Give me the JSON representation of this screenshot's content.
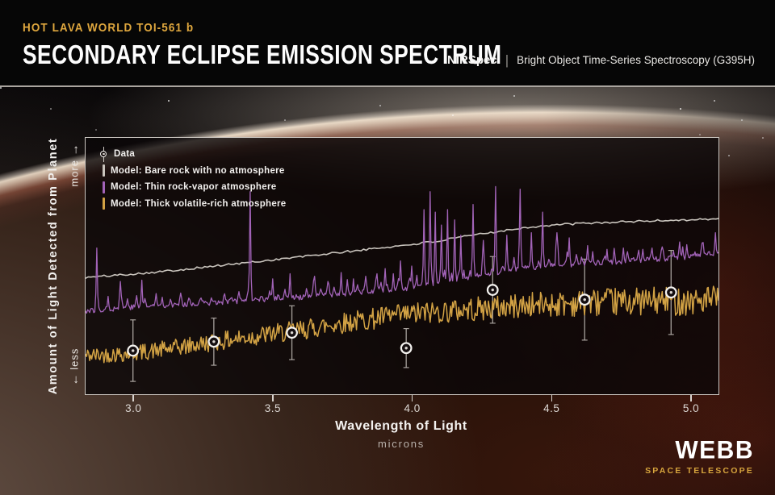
{
  "header": {
    "eyebrow": "HOT LAVA WORLD TOI-561 b",
    "title": "SECONDARY ECLIPSE EMISSION SPECTRUM",
    "instrument": "NIRSpec",
    "separator": "|",
    "mode": "Bright Object Time-Series Spectroscopy (G395H)"
  },
  "colors": {
    "eyebrow_gold": "#dfa73e",
    "rock_gray": "#c9c4bd",
    "vapor_purple": "#a263b8",
    "volatile_gold": "#d2a244",
    "marker_ring": "#f4f2ef",
    "error_bar": "#b7b1ac",
    "frame": "#ccc7c1",
    "webb_gold": "#d7a53d"
  },
  "legend": {
    "items": [
      {
        "label": "Data",
        "type": "marker",
        "icon": "data-point-icon"
      },
      {
        "label": "Model: Bare rock with no atmosphere",
        "type": "swatch",
        "color": "#c9c4bd"
      },
      {
        "label": "Model: Thin rock-vapor atmosphere",
        "type": "swatch",
        "color": "#a263b8"
      },
      {
        "label": "Model: Thick volatile-rich atmosphere",
        "type": "swatch",
        "color": "#d2a244"
      }
    ]
  },
  "axes": {
    "x_title": "Wavelength of Light",
    "x_subtitle": "microns",
    "x_tick_labels": [
      "3.0",
      "3.5",
      "4.0",
      "4.5",
      "5.0"
    ],
    "x_tick_values": [
      3.0,
      3.5,
      4.0,
      4.5,
      5.0
    ],
    "y_title": "Amount of Light Detected from Planet",
    "y_more_label": "more",
    "y_less_label": "less",
    "up_arrow": "→",
    "down_arrow": "←"
  },
  "footer": {
    "logo": "WEBB",
    "tagline": "SPACE TELESCOPE"
  },
  "chart_data": {
    "type": "line",
    "title": "Secondary eclipse emission spectrum of TOI-561 b",
    "xlabel": "Wavelength of Light (microns)",
    "ylabel": "Amount of Light Detected from Planet (relative, less to more)",
    "x_range": [
      2.83,
      5.1
    ],
    "y_range": [
      0,
      1
    ],
    "grid": false,
    "legend_position": "top-left",
    "data_points": {
      "name": "Data",
      "x": [
        3.0,
        3.29,
        3.57,
        3.98,
        4.29,
        4.62,
        4.93
      ],
      "y": [
        0.17,
        0.205,
        0.24,
        0.18,
        0.407,
        0.369,
        0.397
      ],
      "yerr": [
        0.12,
        0.092,
        0.105,
        0.076,
        0.13,
        0.158,
        0.164
      ]
    },
    "series": [
      {
        "name": "Model: Bare rock with no atmosphere",
        "color": "#c9c4bd",
        "width": 1.6,
        "samples": 240,
        "seed": 101,
        "jitter": 0.004,
        "anchors": [
          [
            2.83,
            0.455
          ],
          [
            3.1,
            0.478
          ],
          [
            3.4,
            0.512
          ],
          [
            3.7,
            0.548
          ],
          [
            3.95,
            0.578
          ],
          [
            4.1,
            0.598
          ],
          [
            4.2,
            0.617
          ],
          [
            4.3,
            0.634
          ],
          [
            4.42,
            0.652
          ],
          [
            4.55,
            0.663
          ],
          [
            4.7,
            0.67
          ],
          [
            4.85,
            0.676
          ],
          [
            5.1,
            0.684
          ]
        ]
      },
      {
        "name": "Model: Thin rock-vapor atmosphere",
        "color": "#a263b8",
        "width": 1.3,
        "samples": 620,
        "seed": 77,
        "jitter": 0.01,
        "anchors": [
          [
            2.83,
            0.325
          ],
          [
            3.0,
            0.34
          ],
          [
            3.2,
            0.352
          ],
          [
            3.4,
            0.365
          ],
          [
            3.6,
            0.378
          ],
          [
            3.8,
            0.395
          ],
          [
            3.95,
            0.408
          ],
          [
            4.1,
            0.432
          ],
          [
            4.25,
            0.465
          ],
          [
            4.4,
            0.492
          ],
          [
            4.55,
            0.505
          ],
          [
            4.7,
            0.515
          ],
          [
            4.9,
            0.528
          ],
          [
            5.1,
            0.545
          ]
        ],
        "bumps": {
          "spacing_min": 5,
          "spacing_max": 14,
          "height_min": 0.015,
          "height_max": 0.055
        },
        "spikes": [
          [
            2.87,
            0.57
          ],
          [
            2.955,
            0.44
          ],
          [
            3.03,
            0.445
          ],
          [
            3.42,
            0.79
          ],
          [
            3.5,
            0.45
          ],
          [
            3.565,
            0.47
          ],
          [
            3.65,
            0.46
          ],
          [
            3.7,
            0.44
          ],
          [
            3.745,
            0.475
          ],
          [
            3.79,
            0.45
          ],
          [
            3.835,
            0.46
          ],
          [
            3.875,
            0.47
          ],
          [
            3.905,
            0.49
          ],
          [
            3.935,
            0.47
          ],
          [
            3.96,
            0.52
          ],
          [
            4.0,
            0.5
          ],
          [
            4.045,
            0.72
          ],
          [
            4.065,
            0.79
          ],
          [
            4.085,
            0.71
          ],
          [
            4.105,
            0.66
          ],
          [
            4.13,
            0.72
          ],
          [
            4.155,
            0.68
          ],
          [
            4.175,
            0.62
          ],
          [
            4.22,
            0.74
          ],
          [
            4.255,
            0.6
          ],
          [
            4.3,
            0.81
          ],
          [
            4.34,
            0.62
          ],
          [
            4.39,
            0.8
          ],
          [
            4.43,
            0.63
          ],
          [
            4.47,
            0.71
          ],
          [
            4.52,
            0.63
          ],
          [
            4.565,
            0.61
          ],
          [
            4.63,
            0.58
          ],
          [
            4.7,
            0.565
          ],
          [
            4.76,
            0.57
          ],
          [
            4.83,
            0.565
          ],
          [
            4.9,
            0.575
          ],
          [
            4.97,
            0.575
          ],
          [
            5.04,
            0.59
          ],
          [
            5.09,
            0.63
          ]
        ]
      },
      {
        "name": "Model: Thick volatile-rich atmosphere",
        "color": "#d2a244",
        "width": 1.5,
        "samples": 620,
        "seed": 42,
        "noise": {
          "amp_start": 0.03,
          "amp_end": 0.058
        },
        "anchors": [
          [
            2.83,
            0.15
          ],
          [
            3.0,
            0.16
          ],
          [
            3.15,
            0.18
          ],
          [
            3.3,
            0.205
          ],
          [
            3.45,
            0.228
          ],
          [
            3.6,
            0.25
          ],
          [
            3.75,
            0.278
          ],
          [
            3.9,
            0.3
          ],
          [
            4.05,
            0.318
          ],
          [
            4.2,
            0.33
          ],
          [
            4.35,
            0.342
          ],
          [
            4.5,
            0.352
          ],
          [
            4.65,
            0.358
          ],
          [
            4.8,
            0.362
          ],
          [
            5.1,
            0.366
          ]
        ]
      }
    ]
  }
}
